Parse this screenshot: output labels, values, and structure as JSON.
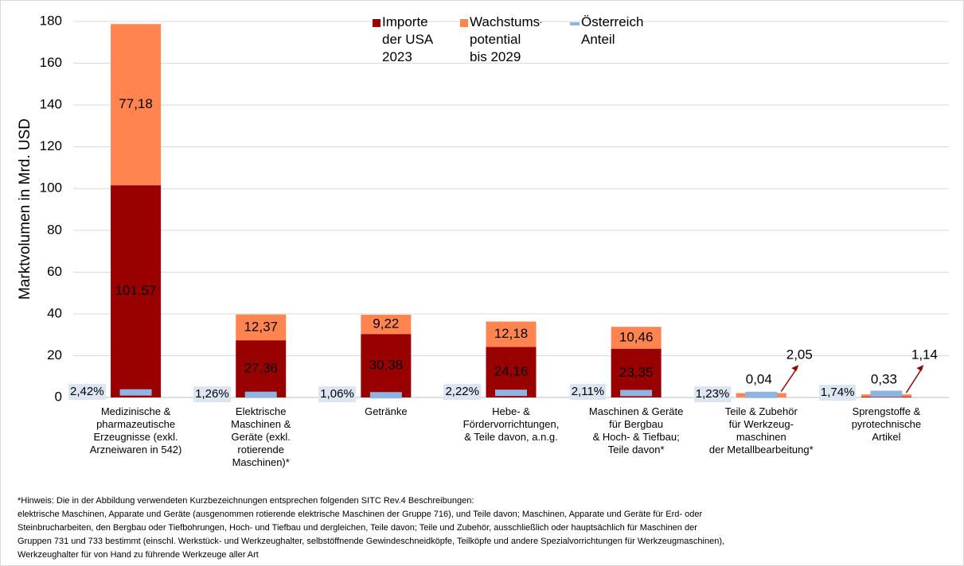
{
  "chart_data": {
    "type": "stacked_bar",
    "y_label": "Marktvolumen in Mrd. USD",
    "categories": [
      "Medizinische &\npharmazeutische\nErzeugnisse (exkl.\nArzneiwaren in 542)",
      "Elektrische\nMaschinen &\nGeräte (exkl.\nrotierende\nMaschinen)*",
      "Getränke",
      "Hebe- &\nFördervorrichtungen,\n& Teile davon, a.n.g.",
      "Maschinen & Geräte\nfür Bergbau\n& Hoch- & Tiefbau;\nTeile davon*",
      "Teile & Zubehör\nfür Werkzeug-\nmaschinen\nder Metallbearbeitung*",
      "Sprengstoffe &\npyrotechnische\nArtikel"
    ],
    "series": [
      {
        "name": "Importe der USA 2023",
        "color": "#990000",
        "values": [
          101.57,
          27.36,
          30.38,
          24.16,
          23.35,
          0.04,
          0.33
        ],
        "value_labels": [
          "101,57",
          "27,36",
          "30,38",
          "24,16",
          "23,35",
          "0,04",
          "0,33"
        ]
      },
      {
        "name": "Wachstums-potential bis 2029",
        "color": "#ff8450",
        "values": [
          77.18,
          12.37,
          9.22,
          12.18,
          10.46,
          2.05,
          1.14
        ],
        "value_labels": [
          "77,18",
          "12,37",
          "9,22",
          "12,18",
          "10,46",
          "2,05",
          "1,14"
        ]
      },
      {
        "name": "Österreich Anteil",
        "color": "#8eb4e3",
        "marker": "dash",
        "values": [
          2.42,
          1.26,
          1.06,
          2.22,
          2.11,
          1.23,
          1.74
        ],
        "value_labels": [
          "2,42%",
          "1,26%",
          "1,06%",
          "2,22%",
          "2,11%",
          "1,23%",
          "1,74%"
        ]
      }
    ],
    "ylim": [
      0,
      180
    ],
    "yticks": [
      0,
      20,
      40,
      60,
      80,
      100,
      120,
      140,
      160,
      180
    ],
    "grid": true,
    "legend": "top",
    "footnote": [
      "*Hinweis: Die in der Abbildung verwendeten Kurzbezeichnungen entsprechen folgenden SITC Rev.4 Beschreibungen:",
      "elektrische Maschinen, Apparate und Geräte (ausgenommen rotierende elektrische Maschinen der Gruppe 716), und Teile davon; Maschinen, Apparate und Geräte für Erd- oder",
      "Steinbrucharbeiten, den Bergbau oder Tiefbohrungen, Hoch- und Tiefbau und dergleichen, Teile davon; Teile und Zubehör, ausschließlich oder hauptsächlich für Maschinen der",
      "Gruppen 731 und 733 bestimmt (einschl. Werkstück- und Werkzeughalter, selbstöffnende Gewindeschneidköpfe, Teilköpfe und andere Spezialvorrichtungen für Werkzeugmaschinen),",
      "Werkzeughalter für von Hand zu führende Werkzeuge aller Art"
    ]
  }
}
